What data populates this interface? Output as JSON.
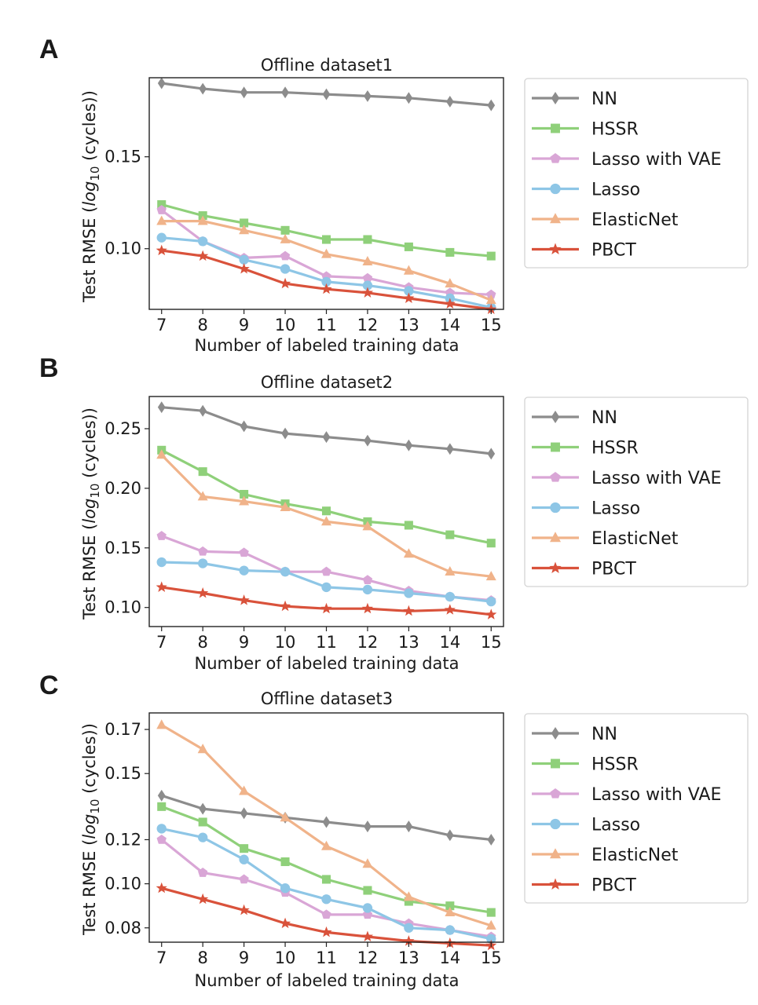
{
  "chart_data": [
    {
      "panel": "A",
      "type": "line",
      "title": "Offline dataset1",
      "xlabel": "Number of labeled training data",
      "ylabel": "Test RMSE (log10 (cycles))",
      "x": [
        7,
        8,
        9,
        10,
        11,
        12,
        13,
        14,
        15
      ],
      "ylim": [
        0.067,
        0.193
      ],
      "yticks": [
        0.1,
        0.15
      ],
      "ytick_labels": [
        "0.10",
        "0.15"
      ],
      "grid": false,
      "legend": "right",
      "series": [
        {
          "name": "NN",
          "color": "#8c8c8c",
          "marker": "diamond",
          "values": [
            0.19,
            0.187,
            0.185,
            0.185,
            0.184,
            0.183,
            0.182,
            0.18,
            0.178
          ]
        },
        {
          "name": "HSSR",
          "color": "#8fd07a",
          "marker": "square",
          "values": [
            0.124,
            0.118,
            0.114,
            0.11,
            0.105,
            0.105,
            0.101,
            0.098,
            0.096
          ]
        },
        {
          "name": "Lasso with VAE",
          "color": "#d9a6d6",
          "marker": "pentagon",
          "values": [
            0.121,
            0.104,
            0.095,
            0.096,
            0.085,
            0.084,
            0.079,
            0.076,
            0.075
          ]
        },
        {
          "name": "Lasso",
          "color": "#8ec6e6",
          "marker": "circle",
          "values": [
            0.106,
            0.104,
            0.094,
            0.089,
            0.082,
            0.08,
            0.077,
            0.073,
            0.068
          ]
        },
        {
          "name": "ElasticNet",
          "color": "#f0b38a",
          "marker": "triangle",
          "values": [
            0.115,
            0.115,
            0.11,
            0.105,
            0.097,
            0.093,
            0.088,
            0.081,
            0.072
          ]
        },
        {
          "name": "PBCT",
          "color": "#d9523b",
          "marker": "star",
          "values": [
            0.099,
            0.096,
            0.089,
            0.081,
            0.078,
            0.076,
            0.073,
            0.07,
            0.067
          ]
        }
      ]
    },
    {
      "panel": "B",
      "type": "line",
      "title": "Offline dataset2",
      "xlabel": "Number of labeled training data",
      "ylabel": "Test RMSE (log10 (cycles))",
      "x": [
        7,
        8,
        9,
        10,
        11,
        12,
        13,
        14,
        15
      ],
      "ylim": [
        0.084,
        0.277
      ],
      "yticks": [
        0.1,
        0.15,
        0.2,
        0.25
      ],
      "ytick_labels": [
        "0.10",
        "0.15",
        "0.20",
        "0.25"
      ],
      "grid": false,
      "legend": "right",
      "series": [
        {
          "name": "NN",
          "color": "#8c8c8c",
          "marker": "diamond",
          "values": [
            0.268,
            0.265,
            0.252,
            0.246,
            0.243,
            0.24,
            0.236,
            0.233,
            0.229
          ]
        },
        {
          "name": "HSSR",
          "color": "#8fd07a",
          "marker": "square",
          "values": [
            0.232,
            0.214,
            0.195,
            0.187,
            0.181,
            0.172,
            0.169,
            0.161,
            0.154
          ]
        },
        {
          "name": "Lasso with VAE",
          "color": "#d9a6d6",
          "marker": "pentagon",
          "values": [
            0.16,
            0.147,
            0.146,
            0.13,
            0.13,
            0.123,
            0.114,
            0.109,
            0.106
          ]
        },
        {
          "name": "Lasso",
          "color": "#8ec6e6",
          "marker": "circle",
          "values": [
            0.138,
            0.137,
            0.131,
            0.13,
            0.117,
            0.115,
            0.112,
            0.109,
            0.105
          ]
        },
        {
          "name": "ElasticNet",
          "color": "#f0b38a",
          "marker": "triangle",
          "values": [
            0.228,
            0.193,
            0.189,
            0.184,
            0.172,
            0.168,
            0.145,
            0.13,
            0.126
          ]
        },
        {
          "name": "PBCT",
          "color": "#d9523b",
          "marker": "star",
          "values": [
            0.117,
            0.112,
            0.106,
            0.101,
            0.099,
            0.099,
            0.097,
            0.098,
            0.094
          ]
        }
      ]
    },
    {
      "panel": "C",
      "type": "line",
      "title": "Offline dataset3",
      "xlabel": "Number of labeled training data",
      "ylabel": "Test RMSE (log10 (cycles))",
      "x": [
        7,
        8,
        9,
        10,
        11,
        12,
        13,
        14,
        15
      ],
      "ylim": [
        0.0735,
        0.1775
      ],
      "yticks": [
        0.08,
        0.1,
        0.12,
        0.15,
        0.17
      ],
      "ytick_labels": [
        "0.08",
        "0.10",
        "0.12",
        "0.15",
        "0.17"
      ],
      "grid": false,
      "legend": "right",
      "series": [
        {
          "name": "NN",
          "color": "#8c8c8c",
          "marker": "diamond",
          "values": [
            0.14,
            0.134,
            0.132,
            0.13,
            0.128,
            0.126,
            0.126,
            0.122,
            0.12
          ]
        },
        {
          "name": "HSSR",
          "color": "#8fd07a",
          "marker": "square",
          "values": [
            0.135,
            0.128,
            0.116,
            0.11,
            0.102,
            0.097,
            0.092,
            0.09,
            0.087
          ]
        },
        {
          "name": "Lasso with VAE",
          "color": "#d9a6d6",
          "marker": "pentagon",
          "values": [
            0.12,
            0.105,
            0.102,
            0.096,
            0.086,
            0.086,
            0.082,
            0.079,
            0.076
          ]
        },
        {
          "name": "Lasso",
          "color": "#8ec6e6",
          "marker": "circle",
          "values": [
            0.125,
            0.121,
            0.111,
            0.098,
            0.093,
            0.089,
            0.08,
            0.079,
            0.075
          ]
        },
        {
          "name": "ElasticNet",
          "color": "#f0b38a",
          "marker": "triangle",
          "values": [
            0.172,
            0.161,
            0.142,
            0.13,
            0.117,
            0.109,
            0.094,
            0.087,
            0.081
          ]
        },
        {
          "name": "PBCT",
          "color": "#d9523b",
          "marker": "star",
          "values": [
            0.098,
            0.093,
            0.088,
            0.082,
            0.078,
            0.076,
            0.074,
            0.073,
            0.072
          ]
        }
      ]
    }
  ]
}
